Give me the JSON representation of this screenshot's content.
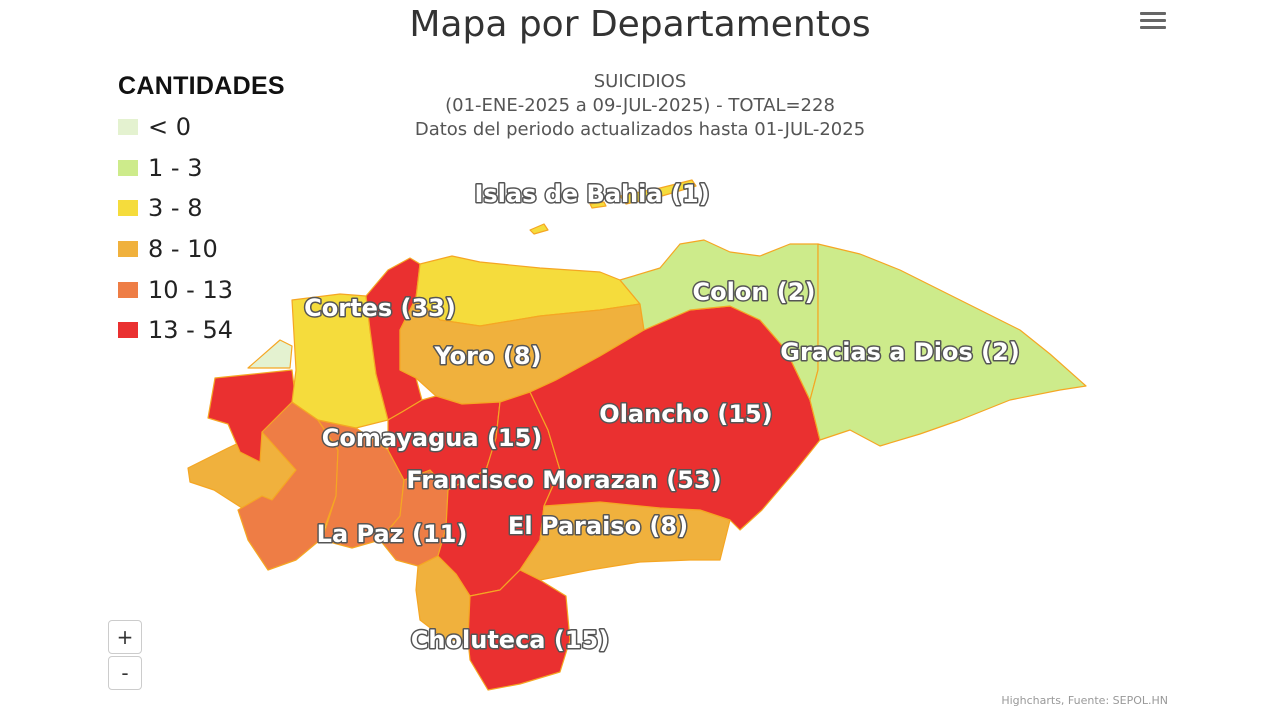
{
  "title": "Mapa por Departamentos",
  "subtitle": {
    "line1": "SUICIDIOS",
    "line2": "(01-ENE-2025 a 09-JUL-2025) - TOTAL=228",
    "line3": "Datos del periodo actualizados hasta 01-JUL-2025"
  },
  "menu_icon": "hamburger-menu-icon",
  "legend": {
    "title": "CANTIDADES",
    "items": [
      {
        "label": "< 0",
        "color": "#e4f2d0"
      },
      {
        "label": "1 - 3",
        "color": "#cdeb8b"
      },
      {
        "label": "3 - 8",
        "color": "#f5dc3c"
      },
      {
        "label": "8 - 10",
        "color": "#f0b13d"
      },
      {
        "label": "10 - 13",
        "color": "#ee7d45"
      },
      {
        "label": "13 - 54",
        "color": "#ea3030"
      }
    ]
  },
  "map_labels": {
    "islas_de_bahia": "Islas de Bahia (1)",
    "colon": "Colon (2)",
    "gracias_a_dios": "Gracias a Dios (2)",
    "cortes": "Cortes (33)",
    "yoro": "Yoro (8)",
    "olancho": "Olancho (15)",
    "comayagua": "Comayagua (15)",
    "francisco_morazan": "Francisco Morazan (53)",
    "la_paz": "La Paz (11)",
    "el_paraiso": "El Paraiso (8)",
    "choluteca": "Choluteca (15)"
  },
  "colors": {
    "lt0": "#e4f2d0",
    "r1_3": "#cdeb8b",
    "r3_8": "#f5dc3c",
    "r8_10": "#f0b13d",
    "r10_13": "#ee7d45",
    "r13_54": "#ea3030",
    "border": "#f5a623"
  },
  "zoom": {
    "in": "+",
    "out": "-"
  },
  "credits": "Highcharts, Fuente: SEPOL.HN"
}
